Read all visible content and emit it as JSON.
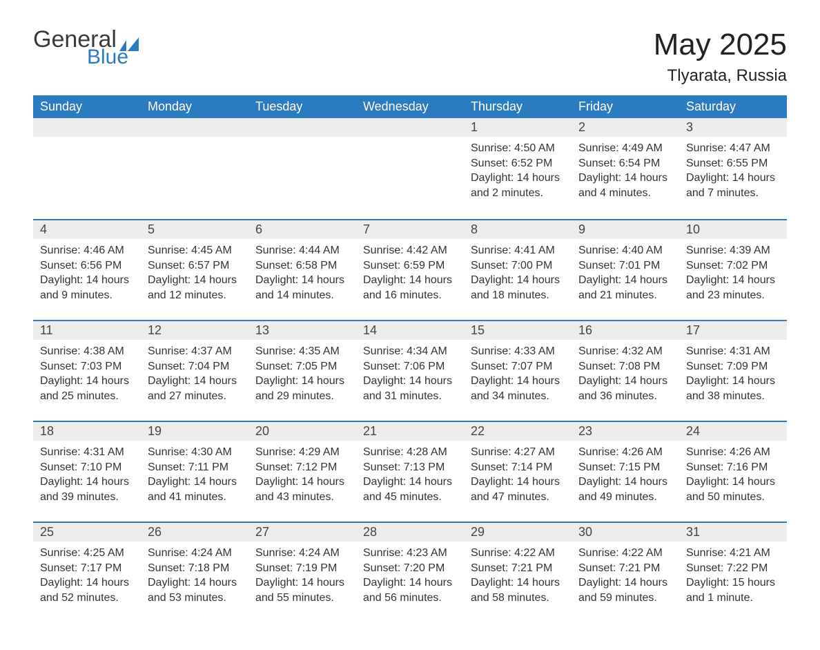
{
  "logo": {
    "general": "General",
    "blue": "Blue"
  },
  "title": "May 2025",
  "location": "Tlyarata, Russia",
  "colors": {
    "header_bg": "#2a7bbf",
    "header_text": "#ffffff",
    "daynum_bg": "#ececec",
    "border_top": "#2a7bbf",
    "text": "#333333",
    "logo_gray": "#3a3a3a",
    "logo_blue": "#2a7bbf"
  },
  "weekdays": [
    "Sunday",
    "Monday",
    "Tuesday",
    "Wednesday",
    "Thursday",
    "Friday",
    "Saturday"
  ],
  "weeks": [
    [
      null,
      null,
      null,
      null,
      {
        "n": "1",
        "sr": "4:50 AM",
        "ss": "6:52 PM",
        "dl": "14 hours and 2 minutes."
      },
      {
        "n": "2",
        "sr": "4:49 AM",
        "ss": "6:54 PM",
        "dl": "14 hours and 4 minutes."
      },
      {
        "n": "3",
        "sr": "4:47 AM",
        "ss": "6:55 PM",
        "dl": "14 hours and 7 minutes."
      }
    ],
    [
      {
        "n": "4",
        "sr": "4:46 AM",
        "ss": "6:56 PM",
        "dl": "14 hours and 9 minutes."
      },
      {
        "n": "5",
        "sr": "4:45 AM",
        "ss": "6:57 PM",
        "dl": "14 hours and 12 minutes."
      },
      {
        "n": "6",
        "sr": "4:44 AM",
        "ss": "6:58 PM",
        "dl": "14 hours and 14 minutes."
      },
      {
        "n": "7",
        "sr": "4:42 AM",
        "ss": "6:59 PM",
        "dl": "14 hours and 16 minutes."
      },
      {
        "n": "8",
        "sr": "4:41 AM",
        "ss": "7:00 PM",
        "dl": "14 hours and 18 minutes."
      },
      {
        "n": "9",
        "sr": "4:40 AM",
        "ss": "7:01 PM",
        "dl": "14 hours and 21 minutes."
      },
      {
        "n": "10",
        "sr": "4:39 AM",
        "ss": "7:02 PM",
        "dl": "14 hours and 23 minutes."
      }
    ],
    [
      {
        "n": "11",
        "sr": "4:38 AM",
        "ss": "7:03 PM",
        "dl": "14 hours and 25 minutes."
      },
      {
        "n": "12",
        "sr": "4:37 AM",
        "ss": "7:04 PM",
        "dl": "14 hours and 27 minutes."
      },
      {
        "n": "13",
        "sr": "4:35 AM",
        "ss": "7:05 PM",
        "dl": "14 hours and 29 minutes."
      },
      {
        "n": "14",
        "sr": "4:34 AM",
        "ss": "7:06 PM",
        "dl": "14 hours and 31 minutes."
      },
      {
        "n": "15",
        "sr": "4:33 AM",
        "ss": "7:07 PM",
        "dl": "14 hours and 34 minutes."
      },
      {
        "n": "16",
        "sr": "4:32 AM",
        "ss": "7:08 PM",
        "dl": "14 hours and 36 minutes."
      },
      {
        "n": "17",
        "sr": "4:31 AM",
        "ss": "7:09 PM",
        "dl": "14 hours and 38 minutes."
      }
    ],
    [
      {
        "n": "18",
        "sr": "4:31 AM",
        "ss": "7:10 PM",
        "dl": "14 hours and 39 minutes."
      },
      {
        "n": "19",
        "sr": "4:30 AM",
        "ss": "7:11 PM",
        "dl": "14 hours and 41 minutes."
      },
      {
        "n": "20",
        "sr": "4:29 AM",
        "ss": "7:12 PM",
        "dl": "14 hours and 43 minutes."
      },
      {
        "n": "21",
        "sr": "4:28 AM",
        "ss": "7:13 PM",
        "dl": "14 hours and 45 minutes."
      },
      {
        "n": "22",
        "sr": "4:27 AM",
        "ss": "7:14 PM",
        "dl": "14 hours and 47 minutes."
      },
      {
        "n": "23",
        "sr": "4:26 AM",
        "ss": "7:15 PM",
        "dl": "14 hours and 49 minutes."
      },
      {
        "n": "24",
        "sr": "4:26 AM",
        "ss": "7:16 PM",
        "dl": "14 hours and 50 minutes."
      }
    ],
    [
      {
        "n": "25",
        "sr": "4:25 AM",
        "ss": "7:17 PM",
        "dl": "14 hours and 52 minutes."
      },
      {
        "n": "26",
        "sr": "4:24 AM",
        "ss": "7:18 PM",
        "dl": "14 hours and 53 minutes."
      },
      {
        "n": "27",
        "sr": "4:24 AM",
        "ss": "7:19 PM",
        "dl": "14 hours and 55 minutes."
      },
      {
        "n": "28",
        "sr": "4:23 AM",
        "ss": "7:20 PM",
        "dl": "14 hours and 56 minutes."
      },
      {
        "n": "29",
        "sr": "4:22 AM",
        "ss": "7:21 PM",
        "dl": "14 hours and 58 minutes."
      },
      {
        "n": "30",
        "sr": "4:22 AM",
        "ss": "7:21 PM",
        "dl": "14 hours and 59 minutes."
      },
      {
        "n": "31",
        "sr": "4:21 AM",
        "ss": "7:22 PM",
        "dl": "15 hours and 1 minute."
      }
    ]
  ],
  "labels": {
    "sunrise": "Sunrise: ",
    "sunset": "Sunset: ",
    "daylight": "Daylight: "
  }
}
